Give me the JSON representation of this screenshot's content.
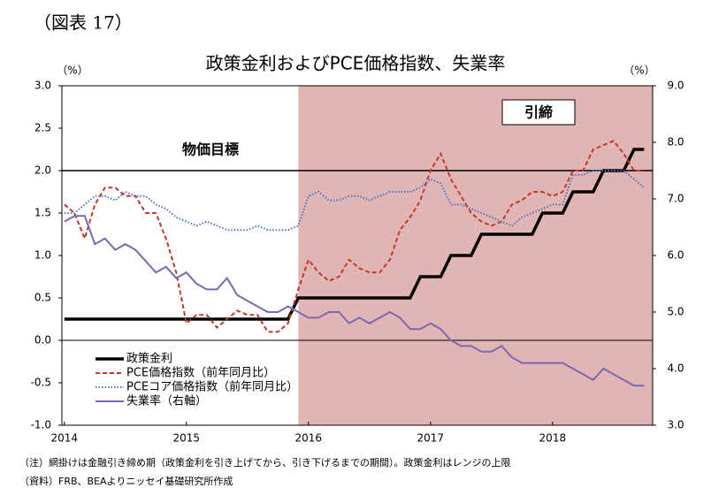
{
  "chart_data": {
    "type": "line",
    "figure_label": "（図表 17）",
    "title": "政策金利およびPCE価格指数、失業率",
    "y_unit": "（%）",
    "y2_unit": "（%）",
    "x": [
      2014,
      2014.083,
      2014.167,
      2014.25,
      2014.333,
      2014.417,
      2014.5,
      2014.583,
      2014.667,
      2014.75,
      2014.833,
      2014.917,
      2015,
      2015.083,
      2015.167,
      2015.25,
      2015.333,
      2015.417,
      2015.5,
      2015.583,
      2015.667,
      2015.75,
      2015.833,
      2015.917,
      2016,
      2016.083,
      2016.167,
      2016.25,
      2016.333,
      2016.417,
      2016.5,
      2016.583,
      2016.667,
      2016.75,
      2016.833,
      2016.917,
      2017,
      2017.083,
      2017.167,
      2017.25,
      2017.333,
      2017.417,
      2017.5,
      2017.583,
      2017.667,
      2017.75,
      2017.833,
      2017.917,
      2018,
      2018.083,
      2018.167,
      2018.25,
      2018.333,
      2018.417,
      2018.5,
      2018.583,
      2018.667,
      2018.75
    ],
    "series": [
      {
        "name": "政策金利",
        "color": "#000000",
        "style": "solid",
        "width": 3.5,
        "values": [
          0.25,
          0.25,
          0.25,
          0.25,
          0.25,
          0.25,
          0.25,
          0.25,
          0.25,
          0.25,
          0.25,
          0.25,
          0.25,
          0.25,
          0.25,
          0.25,
          0.25,
          0.25,
          0.25,
          0.25,
          0.25,
          0.25,
          0.25,
          0.5,
          0.5,
          0.5,
          0.5,
          0.5,
          0.5,
          0.5,
          0.5,
          0.5,
          0.5,
          0.5,
          0.5,
          0.75,
          0.75,
          0.75,
          1.0,
          1.0,
          1.0,
          1.25,
          1.25,
          1.25,
          1.25,
          1.25,
          1.25,
          1.5,
          1.5,
          1.5,
          1.75,
          1.75,
          1.75,
          2.0,
          2.0,
          2.0,
          2.25,
          2.25
        ]
      },
      {
        "name": "PCE価格指数（前年同月比）",
        "color": "#c0392b",
        "style": "dashed",
        "width": 2,
        "values": [
          1.6,
          1.5,
          1.2,
          1.6,
          1.8,
          1.8,
          1.7,
          1.7,
          1.5,
          1.5,
          1.2,
          0.8,
          0.2,
          0.3,
          0.3,
          0.15,
          0.25,
          0.35,
          0.3,
          0.3,
          0.1,
          0.1,
          0.2,
          0.6,
          0.95,
          0.8,
          0.7,
          0.75,
          0.95,
          0.85,
          0.8,
          0.8,
          0.95,
          1.3,
          1.45,
          1.65,
          2.0,
          2.2,
          1.9,
          1.7,
          1.5,
          1.4,
          1.35,
          1.4,
          1.6,
          1.65,
          1.75,
          1.75,
          1.7,
          1.75,
          2.0,
          2.0,
          2.25,
          2.3,
          2.35,
          2.2,
          2.0,
          2.0
        ]
      },
      {
        "name": "PCEコア価格指数（前年同月比）",
        "color": "#4a74c4",
        "style": "dotted",
        "width": 2,
        "values": [
          1.5,
          1.5,
          1.6,
          1.7,
          1.7,
          1.65,
          1.75,
          1.7,
          1.7,
          1.6,
          1.55,
          1.45,
          1.4,
          1.35,
          1.4,
          1.35,
          1.3,
          1.3,
          1.3,
          1.35,
          1.3,
          1.3,
          1.3,
          1.35,
          1.7,
          1.75,
          1.65,
          1.65,
          1.7,
          1.7,
          1.65,
          1.7,
          1.75,
          1.75,
          1.75,
          1.8,
          1.9,
          1.85,
          1.6,
          1.6,
          1.55,
          1.5,
          1.45,
          1.4,
          1.35,
          1.45,
          1.5,
          1.55,
          1.6,
          1.6,
          1.95,
          1.95,
          2.0,
          2.0,
          2.0,
          2.0,
          1.9,
          1.8
        ]
      },
      {
        "name": "失業率（右軸）",
        "color": "#7b68b0",
        "style": "solid",
        "width": 2,
        "axis": "y2",
        "values": [
          6.6,
          6.7,
          6.7,
          6.2,
          6.3,
          6.1,
          6.2,
          6.1,
          5.9,
          5.7,
          5.8,
          5.6,
          5.7,
          5.5,
          5.4,
          5.4,
          5.6,
          5.3,
          5.2,
          5.1,
          5.0,
          5.0,
          5.1,
          5.0,
          4.9,
          4.9,
          5.0,
          5.0,
          4.8,
          4.9,
          4.8,
          4.9,
          5.0,
          4.9,
          4.7,
          4.7,
          4.8,
          4.7,
          4.5,
          4.4,
          4.4,
          4.3,
          4.3,
          4.4,
          4.2,
          4.1,
          4.1,
          4.1,
          4.1,
          4.1,
          4.0,
          3.9,
          3.8,
          4.0,
          3.9,
          3.8,
          3.7,
          3.7
        ]
      }
    ],
    "xlim": [
      2013.98,
      2018.82
    ],
    "xticks": [
      2014,
      2015,
      2016,
      2017,
      2018
    ],
    "ylim": [
      -1.0,
      3.0
    ],
    "yticks": [
      {
        "value": -1.0,
        "label": "-1.0"
      },
      {
        "value": -0.5,
        "label": "-0.5"
      },
      {
        "value": 0.0,
        "label": "0.0"
      },
      {
        "value": 0.5,
        "label": "0.5"
      },
      {
        "value": 1.0,
        "label": "1.0"
      },
      {
        "value": 1.5,
        "label": "1.5"
      },
      {
        "value": 2.0,
        "label": "2.0"
      },
      {
        "value": 2.5,
        "label": "2.5"
      },
      {
        "value": 3.0,
        "label": "3.0"
      }
    ],
    "y2lim": [
      3.0,
      9.0
    ],
    "y2ticks": [
      {
        "value": 3.0,
        "label": "3.0"
      },
      {
        "value": 4.0,
        "label": "4.0"
      },
      {
        "value": 5.0,
        "label": "5.0"
      },
      {
        "value": 6.0,
        "label": "6.0"
      },
      {
        "value": 7.0,
        "label": "7.0"
      },
      {
        "value": 8.0,
        "label": "8.0"
      },
      {
        "value": 9.0,
        "label": "9.0"
      }
    ],
    "target_line": {
      "value": 2.0,
      "label": "物価目標"
    },
    "shaded_region": {
      "from": 2015.917,
      "label": "引締",
      "color": "#e2b5b5"
    },
    "legend": "lower-left",
    "notes": [
      "（注）網掛けは金融引き締め期（政策金利を引き上げてから、引き下げるまでの期間）。政策金利はレンジの上限",
      "（資料）FRB、BEAよりニッセイ基礎研究所作成"
    ]
  }
}
